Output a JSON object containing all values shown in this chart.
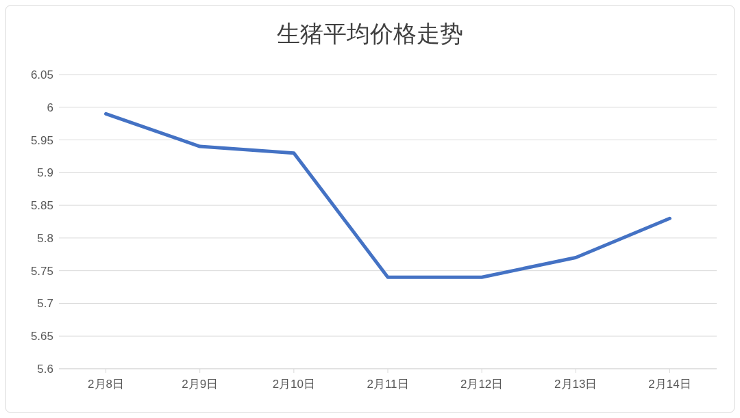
{
  "chart_data": {
    "type": "line",
    "title": "生猪平均价格走势",
    "categories": [
      "2月8日",
      "2月9日",
      "2月10日",
      "2月11日",
      "2月12日",
      "2月13日",
      "2月14日"
    ],
    "series": [
      {
        "color": "#4472c4",
        "values": [
          5.99,
          5.94,
          5.93,
          5.74,
          5.74,
          5.77,
          5.83
        ]
      }
    ],
    "ylim": [
      5.6,
      6.05
    ],
    "yticks": [
      5.6,
      5.65,
      5.7,
      5.75,
      5.8,
      5.85,
      5.9,
      5.95,
      6,
      6.05
    ],
    "grid": "y",
    "legend": false
  }
}
